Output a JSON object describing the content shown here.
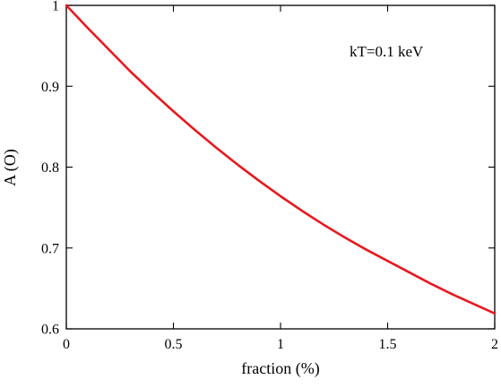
{
  "chart_data": {
    "type": "line",
    "title": "",
    "xlabel": "fraction (%)",
    "ylabel": "A (O)",
    "xlim": [
      0,
      2
    ],
    "ylim": [
      0.6,
      1.0
    ],
    "x_ticks": [
      0,
      0.5,
      1,
      1.5,
      2
    ],
    "x_tick_labels": [
      "0",
      "0.5",
      "1",
      "1.5",
      "2"
    ],
    "y_ticks": [
      0.6,
      0.7,
      0.8,
      0.9,
      1.0
    ],
    "y_tick_labels": [
      "0.6",
      "0.7",
      "0.8",
      "0.9",
      "1"
    ],
    "grid": false,
    "annotation": "kT=0.1 keV",
    "series": [
      {
        "color": "#e8191e",
        "x": [
          0,
          0.1,
          0.2,
          0.3,
          0.4,
          0.5,
          0.6,
          0.7,
          0.8,
          0.9,
          1.0,
          1.1,
          1.2,
          1.3,
          1.4,
          1.5,
          1.6,
          1.7,
          1.8,
          1.9,
          2.0
        ],
        "values": [
          1.0,
          0.972,
          0.945,
          0.918,
          0.893,
          0.869,
          0.846,
          0.824,
          0.803,
          0.783,
          0.764,
          0.746,
          0.729,
          0.713,
          0.698,
          0.684,
          0.67,
          0.656,
          0.643,
          0.631,
          0.619
        ]
      }
    ]
  }
}
